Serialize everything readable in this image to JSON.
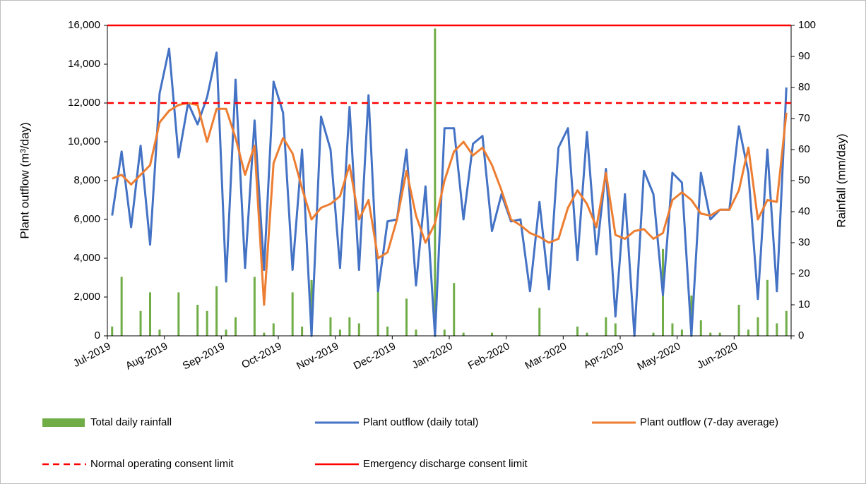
{
  "chart_data": {
    "type": "combo",
    "y_label": "Plant outflow (m³/day)",
    "y2_label": "Rainfall (mm/day)",
    "categories": [
      "Jul-2019",
      null,
      null,
      null,
      null,
      null,
      "Aug-2019",
      null,
      null,
      null,
      null,
      null,
      "Sep-2019",
      null,
      null,
      null,
      null,
      null,
      "Oct-2019",
      null,
      null,
      null,
      null,
      null,
      "Nov-2019",
      null,
      null,
      null,
      null,
      null,
      "Dec-2019",
      null,
      null,
      null,
      null,
      null,
      "Jan-2020",
      null,
      null,
      null,
      null,
      null,
      "Feb-2020",
      null,
      null,
      null,
      null,
      null,
      "Mar-2020",
      null,
      null,
      null,
      null,
      null,
      "Apr-2020",
      null,
      null,
      null,
      null,
      null,
      "May-2020",
      null,
      null,
      null,
      null,
      null,
      "Jun-2020",
      null,
      null,
      null,
      null,
      null
    ],
    "series": [
      {
        "name": "Total daily rainfall",
        "kind": "bar",
        "axis": "y2",
        "color": "#70ad47",
        "values": [
          3,
          19,
          0,
          8,
          14,
          2,
          0,
          14,
          0,
          10,
          8,
          16,
          2,
          6,
          0,
          19,
          1,
          4,
          0,
          14,
          3,
          18,
          0,
          6,
          2,
          6,
          4,
          0,
          18,
          3,
          0,
          12,
          2,
          0,
          99,
          2,
          17,
          1,
          0,
          0,
          1,
          0,
          0,
          0,
          0,
          9,
          0,
          0,
          0,
          3,
          1,
          0,
          6,
          4,
          0,
          0,
          0,
          1,
          28,
          4,
          2,
          13,
          5,
          1,
          1,
          0,
          10,
          2,
          6,
          18,
          4,
          8
        ]
      },
      {
        "name": "Plant outflow (daily total)",
        "kind": "line",
        "axis": "y",
        "color": "#4472c4",
        "values": [
          6200,
          9500,
          5600,
          9800,
          4700,
          12500,
          14800,
          9200,
          12000,
          10900,
          12300,
          14600,
          2800,
          13200,
          3500,
          11100,
          3400,
          13100,
          11500,
          3400,
          9600,
          0,
          11300,
          9600,
          3500,
          11800,
          3400,
          12400,
          2300,
          5900,
          6000,
          9600,
          2600,
          7700,
          0,
          10700,
          10700,
          6000,
          9900,
          10300,
          5400,
          7300,
          5900,
          6000,
          2300,
          6900,
          2400,
          9700,
          10700,
          3900,
          10500,
          4200,
          8600,
          1000,
          7300,
          0,
          8500,
          7300,
          2100,
          8400,
          7900,
          0,
          8400,
          6000,
          6500,
          6500,
          10800,
          8400,
          1900,
          9600,
          2300,
          12800
        ]
      },
      {
        "name": "Plant outflow (7-day average)",
        "kind": "line",
        "axis": "y",
        "color": "#ed7d31",
        "values": [
          8100,
          8300,
          7800,
          8300,
          8800,
          11000,
          11600,
          11900,
          12000,
          11900,
          10000,
          11700,
          11700,
          10200,
          8300,
          9800,
          1600,
          8900,
          10200,
          9400,
          7600,
          6000,
          6600,
          6800,
          7200,
          8800,
          6000,
          7000,
          4000,
          4300,
          6000,
          8500,
          6200,
          4800,
          5800,
          8000,
          9500,
          10000,
          9300,
          9700,
          8800,
          7500,
          6000,
          5700,
          5300,
          5100,
          4800,
          5000,
          6600,
          7500,
          6800,
          5600,
          8400,
          5200,
          5000,
          5400,
          5500,
          5000,
          5300,
          7000,
          7400,
          7000,
          6300,
          6200,
          6500,
          6500,
          7500,
          9700,
          6000,
          7000,
          6900,
          11500
        ]
      }
    ],
    "hlines": [
      {
        "name": "Normal operating consent limit",
        "value": 12000,
        "color": "#ff0000",
        "dashed": true
      },
      {
        "name": "Emergency discharge consent limit",
        "value": 16000,
        "color": "#ff0000",
        "dashed": false
      }
    ],
    "ylim": [
      0,
      16000
    ],
    "yticks": [
      0,
      {
        "value": 2000,
        "label": "2,000"
      },
      {
        "value": 4000,
        "label": "4,000"
      },
      {
        "value": 6000,
        "label": "6,000"
      },
      {
        "value": 8000,
        "label": "8,000"
      },
      {
        "value": 10000,
        "label": "10,000"
      },
      {
        "value": 12000,
        "label": "12,000"
      },
      {
        "value": 14000,
        "label": "14,000"
      },
      {
        "value": 16000,
        "label": "16,000"
      }
    ],
    "y2lim": [
      0,
      100
    ],
    "y2ticks": [
      0,
      10,
      20,
      30,
      40,
      50,
      60,
      70,
      80,
      90,
      100
    ]
  }
}
